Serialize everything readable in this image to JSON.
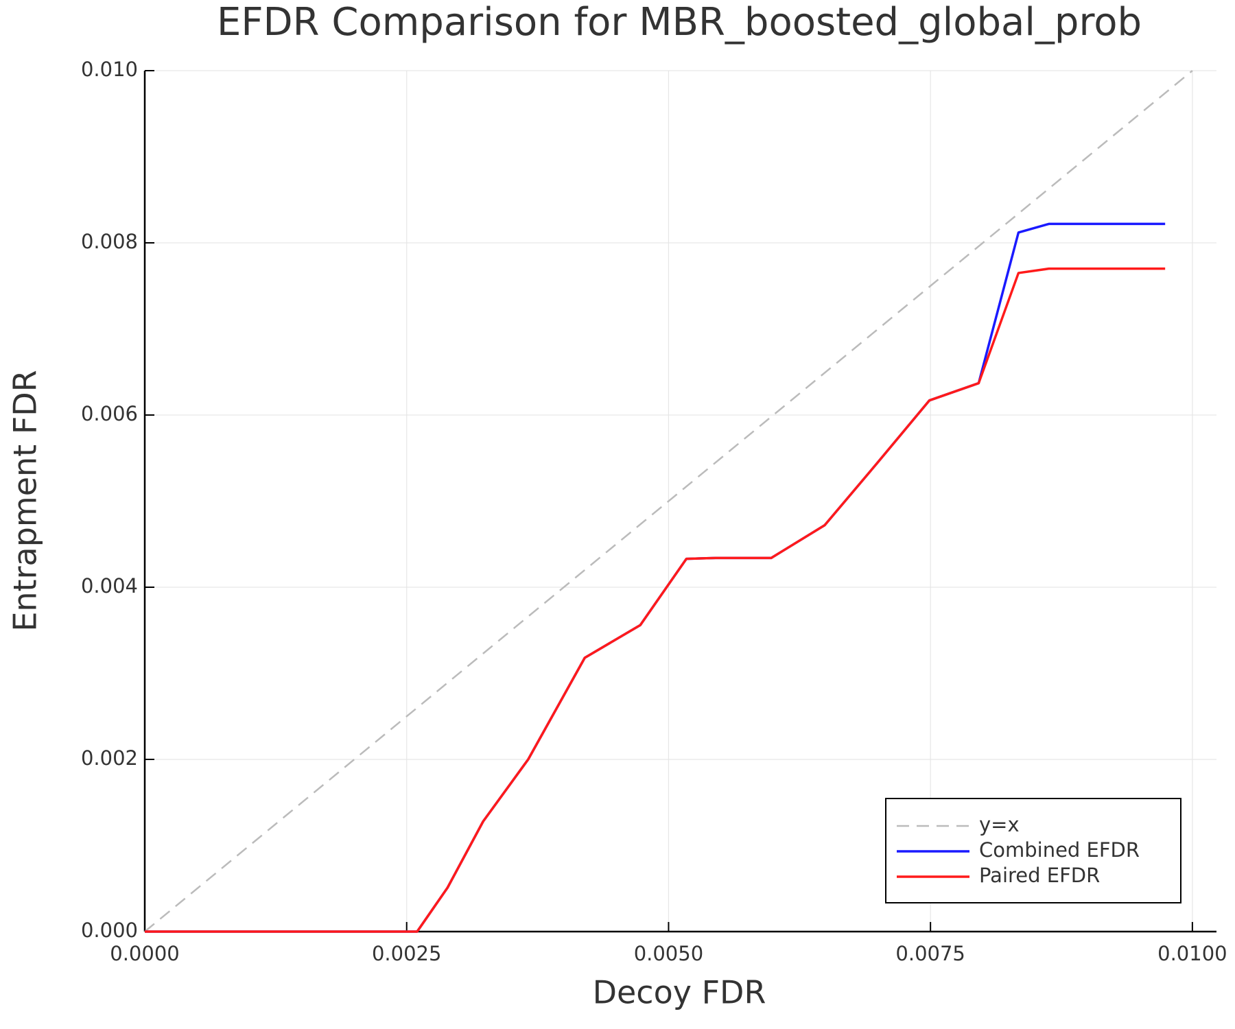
{
  "chart_data": {
    "type": "line",
    "title": "EFDR Comparison for MBR_boosted_global_prob",
    "xlabel": "Decoy FDR",
    "ylabel": "Entrapment FDR",
    "xlim": [
      0,
      0.01023
    ],
    "ylim": [
      0,
      0.01
    ],
    "xticks": [
      {
        "value": 0,
        "label": "0.0000"
      },
      {
        "value": 0.0025,
        "label": "0.0025"
      },
      {
        "value": 0.005,
        "label": "0.0050"
      },
      {
        "value": 0.0075,
        "label": "0.0075"
      },
      {
        "value": 0.01,
        "label": "0.0100"
      }
    ],
    "yticks": [
      {
        "value": 0,
        "label": "0.000"
      },
      {
        "value": 0.002,
        "label": "0.002"
      },
      {
        "value": 0.004,
        "label": "0.004"
      },
      {
        "value": 0.006,
        "label": "0.006"
      },
      {
        "value": 0.008,
        "label": "0.008"
      },
      {
        "value": 0.01,
        "label": "0.010"
      }
    ],
    "grid": true,
    "legend": "lower right",
    "series": [
      {
        "name": "y=x",
        "color": "#bbbbbb",
        "dash": true,
        "x": [
          0,
          0.01
        ],
        "values": [
          0,
          0.01
        ]
      },
      {
        "name": "Combined EFDR",
        "color": "#1a1aff",
        "x": [
          0,
          0.0026,
          0.00289,
          0.00323,
          0.00366,
          0.0042,
          0.00473,
          0.00517,
          0.00545,
          0.00598,
          0.00649,
          0.00699,
          0.00749,
          0.00796,
          0.00834,
          0.00863,
          0.00974
        ],
        "values": [
          0,
          0,
          0.00051,
          0.00128,
          0.002,
          0.00318,
          0.00356,
          0.00433,
          0.00434,
          0.00434,
          0.00472,
          0.00544,
          0.00617,
          0.00637,
          0.00812,
          0.00822,
          0.00822
        ]
      },
      {
        "name": "Paired EFDR",
        "color": "#ff1a1a",
        "x": [
          0,
          0.0026,
          0.00289,
          0.00323,
          0.00366,
          0.0042,
          0.00473,
          0.00517,
          0.00545,
          0.00598,
          0.00649,
          0.00699,
          0.00749,
          0.00796,
          0.00834,
          0.00863,
          0.00974
        ],
        "values": [
          0,
          0,
          0.00051,
          0.00128,
          0.002,
          0.00318,
          0.00356,
          0.00433,
          0.00434,
          0.00434,
          0.00472,
          0.00544,
          0.00617,
          0.00637,
          0.00765,
          0.0077,
          0.0077
        ]
      }
    ]
  }
}
